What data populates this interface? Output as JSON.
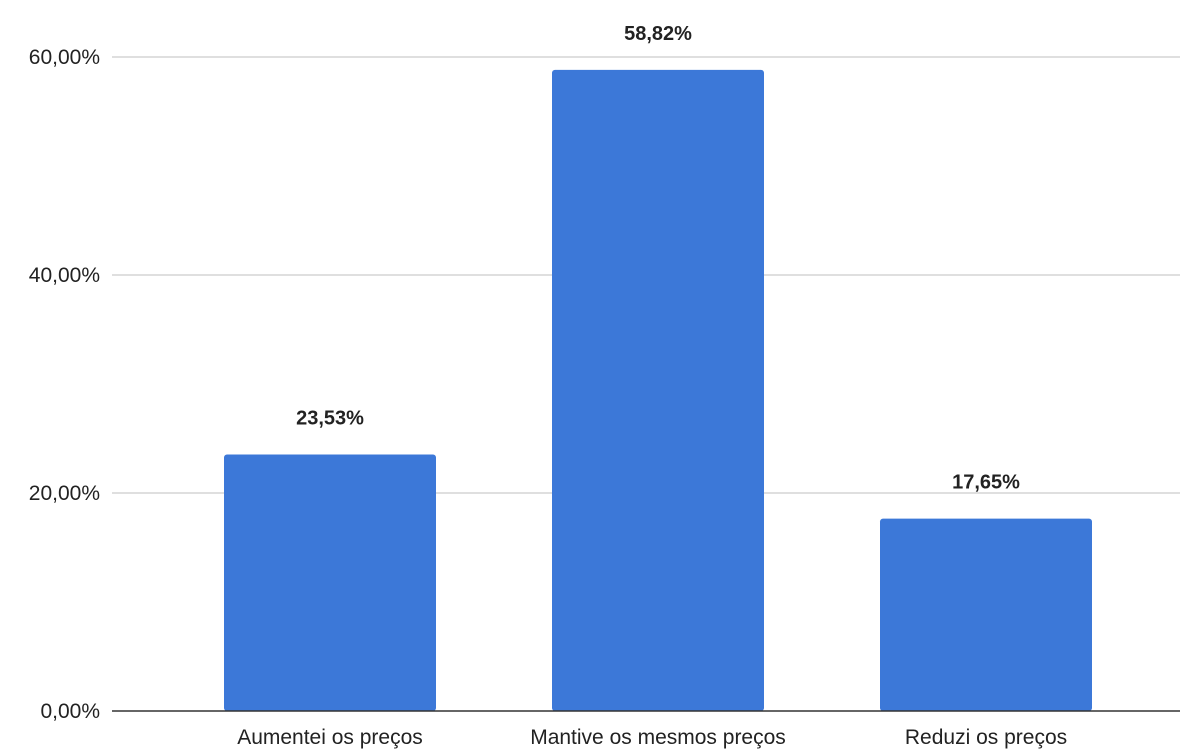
{
  "chart_data": {
    "type": "bar",
    "title": "",
    "xlabel": "",
    "ylabel": "",
    "categories": [
      "Aumentei os preços",
      "Mantive os mesmos preços",
      "Reduzi os preços"
    ],
    "values": [
      23.53,
      58.82,
      17.65
    ],
    "data_labels": [
      "23,53%",
      "58,82%",
      "17,65%"
    ],
    "ylim": [
      0,
      60
    ],
    "yticks": [
      0,
      20,
      40,
      60
    ],
    "ytick_labels": [
      "0,00%",
      "20,00%",
      "40,00%",
      "60,00%"
    ],
    "grid": true,
    "legend": "none",
    "colors": {
      "bar": "#3c78d8",
      "grid": "#cccccc",
      "axis": "#333333",
      "text": "#222222"
    }
  }
}
